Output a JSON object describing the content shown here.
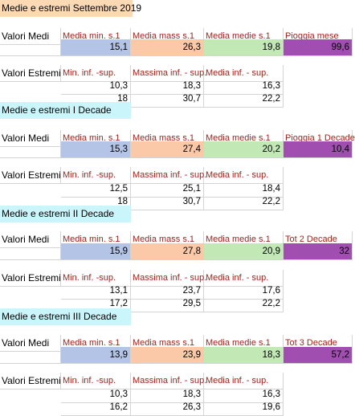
{
  "title_sept": "Medie e estremi Settembre 2019",
  "title_dec1": "Medie e estremi I Decade",
  "title_dec2": "Medie e estremi II Decade",
  "title_dec3": "Medie e estremi III Decade",
  "label_medi": "Valori Medi",
  "label_estremi": "Valori Estremi",
  "month": {
    "headers": [
      "Media min. s.1",
      "Media mass s.1",
      "Media medie s.1",
      "Pioggia mese"
    ],
    "values": [
      "15,1",
      "26,3",
      "19,8",
      "99,6"
    ],
    "ext_headers": [
      "Min. inf. -sup.",
      "Massima inf. - sup.",
      "Media inf. - sup."
    ],
    "ext_row1": [
      "10,3",
      "18,3",
      "16,3"
    ],
    "ext_row2": [
      "18",
      "30,7",
      "22,2"
    ]
  },
  "dec1": {
    "headers": [
      "Media min. s.1",
      "Media mass s.1",
      "Media medie s.1",
      "Pioggia 1 Decade"
    ],
    "values": [
      "15,3",
      "27,4",
      "20,2",
      "10,4"
    ],
    "ext_headers": [
      "Min. inf. -sup.",
      "Massima inf. - sup.",
      "Media inf. - sup."
    ],
    "ext_row1": [
      "12,5",
      "25,1",
      "18,4"
    ],
    "ext_row2": [
      "18",
      "30,7",
      "22,2"
    ]
  },
  "dec2": {
    "headers": [
      "Media min. s.1",
      "Media mass s.1",
      "Media medie s.1",
      "Tot 2 Decade"
    ],
    "values": [
      "15,9",
      "27,8",
      "20,9",
      "32"
    ],
    "ext_headers": [
      "Min. inf. -sup.",
      "Massima inf. - sup.",
      "Media inf. - sup."
    ],
    "ext_row1": [
      "13,1",
      "23,7",
      "17,6"
    ],
    "ext_row2": [
      "17,2",
      "29,5",
      "22,2"
    ]
  },
  "dec3": {
    "headers": [
      "Media min. s.1",
      "Media mass s.1",
      "Media medie s.1",
      "Tot 3 Decade"
    ],
    "values": [
      "13,9",
      "23,9",
      "18,3",
      "57,2"
    ],
    "ext_headers": [
      "Min. inf. -sup.",
      "Massima inf. - sup.",
      "Media inf. - sup."
    ],
    "ext_row1": [
      "10,3",
      "18,3",
      "16,3"
    ],
    "ext_row2": [
      "16,2",
      "26,3",
      "19,6"
    ]
  }
}
